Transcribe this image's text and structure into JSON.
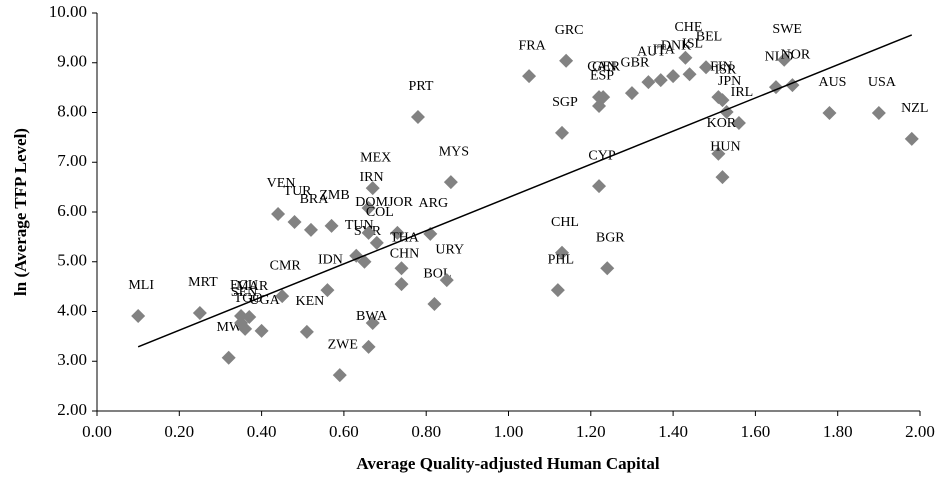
{
  "chart_data": {
    "type": "scatter",
    "x_label": "Average Quality-adjusted Human Capital",
    "y_label": "ln (Average TFP Level)",
    "color": "#828282",
    "labels": [
      "MLI",
      "MRT",
      "MWI",
      "ECU",
      "MAR",
      "SEN",
      "TGO",
      "UGA",
      "CMR",
      "KEN",
      "IDN",
      "ZWE",
      "VEN",
      "TUR",
      "BRA",
      "ZMB",
      "TUN",
      "SYR",
      "IRN",
      "MEX",
      "DOM",
      "COL",
      "JOR",
      "ARG",
      "THA",
      "CHN",
      "BOL",
      "URY",
      null,
      "BWA",
      "PRT",
      "MYS",
      "FRA",
      "GRC",
      "SGP",
      "CYP",
      "CHL",
      "PHL",
      "BGR",
      "CAN",
      "GER",
      "ESP",
      "GBR",
      "AUT",
      "ITA",
      "DNK",
      "CHE",
      "ISL",
      "BEL",
      "FIN",
      "ISR",
      "JPN",
      "IRL",
      "KOR",
      "HUN",
      "NLD",
      "SWE",
      "NOR",
      "AUS",
      "USA",
      "NZL"
    ],
    "x": [
      0.1,
      0.25,
      0.32,
      0.35,
      0.37,
      0.35,
      0.36,
      0.4,
      0.45,
      0.51,
      0.56,
      0.59,
      0.44,
      0.48,
      0.52,
      0.57,
      0.63,
      0.65,
      0.66,
      0.67,
      0.66,
      0.68,
      0.73,
      0.81,
      0.74,
      0.74,
      0.82,
      0.85,
      0.67,
      0.66,
      0.78,
      0.86,
      1.05,
      1.14,
      1.13,
      1.22,
      1.13,
      1.12,
      1.24,
      1.22,
      1.23,
      1.22,
      1.3,
      1.34,
      1.37,
      1.4,
      1.43,
      1.44,
      1.48,
      1.51,
      1.52,
      1.53,
      1.56,
      1.51,
      1.52,
      1.65,
      1.67,
      1.69,
      1.78,
      1.9,
      1.98
    ],
    "y": [
      3.91,
      3.97,
      3.07,
      3.91,
      3.89,
      3.77,
      3.65,
      3.61,
      4.31,
      3.59,
      4.43,
      2.72,
      5.96,
      5.8,
      5.64,
      5.72,
      5.12,
      5.0,
      6.08,
      6.48,
      5.58,
      5.38,
      5.58,
      5.56,
      4.87,
      4.55,
      4.15,
      4.63,
      3.77,
      3.29,
      7.91,
      6.6,
      8.73,
      9.04,
      7.59,
      6.52,
      5.18,
      4.43,
      4.87,
      8.31,
      8.31,
      8.13,
      8.39,
      8.61,
      8.65,
      8.73,
      9.1,
      8.77,
      8.91,
      8.31,
      8.25,
      8.01,
      7.79,
      7.17,
      6.7,
      8.51,
      9.06,
      8.55,
      7.99,
      7.99,
      7.47
    ],
    "trendline": {
      "color": "#000000",
      "x": [
        0.1,
        1.98
      ],
      "y": [
        3.29,
        9.56
      ]
    },
    "xlim": [
      0,
      2
    ],
    "ylim": [
      2,
      10
    ],
    "xticks": [
      {
        "value": 0,
        "label": "0.00"
      },
      {
        "value": 0.2,
        "label": "0.20"
      },
      {
        "value": 0.4,
        "label": "0.40"
      },
      {
        "value": 0.6,
        "label": "0.60"
      },
      {
        "value": 0.8,
        "label": "0.80"
      },
      {
        "value": 1,
        "label": "1.00"
      },
      {
        "value": 1.2,
        "label": "1.20"
      },
      {
        "value": 1.4,
        "label": "1.40"
      },
      {
        "value": 1.6,
        "label": "1.60"
      },
      {
        "value": 1.8,
        "label": "1.80"
      },
      {
        "value": 2,
        "label": "2.00"
      }
    ],
    "yticks": [
      {
        "value": 2,
        "label": "2.00"
      },
      {
        "value": 3,
        "label": "3.00"
      },
      {
        "value": 4,
        "label": "4.00"
      },
      {
        "value": 5,
        "label": "5.00"
      },
      {
        "value": 6,
        "label": "6.00"
      },
      {
        "value": 7,
        "label": "7.00"
      },
      {
        "value": 8,
        "label": "8.00"
      },
      {
        "value": 9,
        "label": "9.00"
      },
      {
        "value": 10,
        "label": "10.00"
      }
    ],
    "grid": false
  }
}
